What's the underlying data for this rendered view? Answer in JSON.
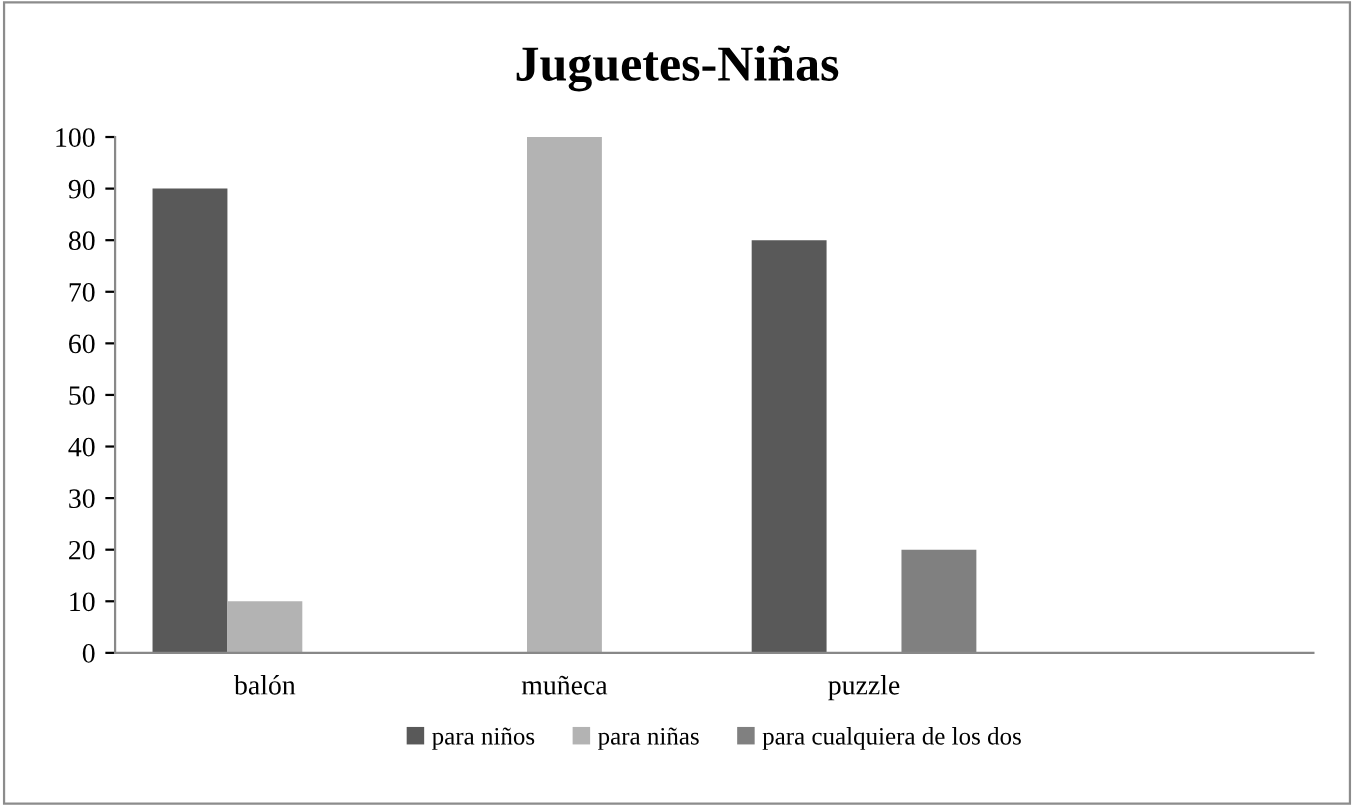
{
  "chart_data": {
    "type": "bar",
    "title": "Juguetes-Niñas",
    "categories": [
      "balón",
      "muñeca",
      "puzzle",
      null
    ],
    "series": [
      {
        "name": "para niños",
        "color": "#595959",
        "values": [
          90,
          0,
          80,
          null
        ]
      },
      {
        "name": "para niñas",
        "color": "#b3b3b3",
        "values": [
          10,
          100,
          0,
          null
        ]
      },
      {
        "name": "para cualquiera de los dos",
        "color": "#808080",
        "values": [
          0,
          0,
          20,
          null
        ]
      }
    ],
    "ylim": [
      0,
      100
    ],
    "yticks": [
      0,
      10,
      20,
      30,
      40,
      50,
      60,
      70,
      80,
      90,
      100
    ],
    "grid": false,
    "legend": "bottom"
  }
}
